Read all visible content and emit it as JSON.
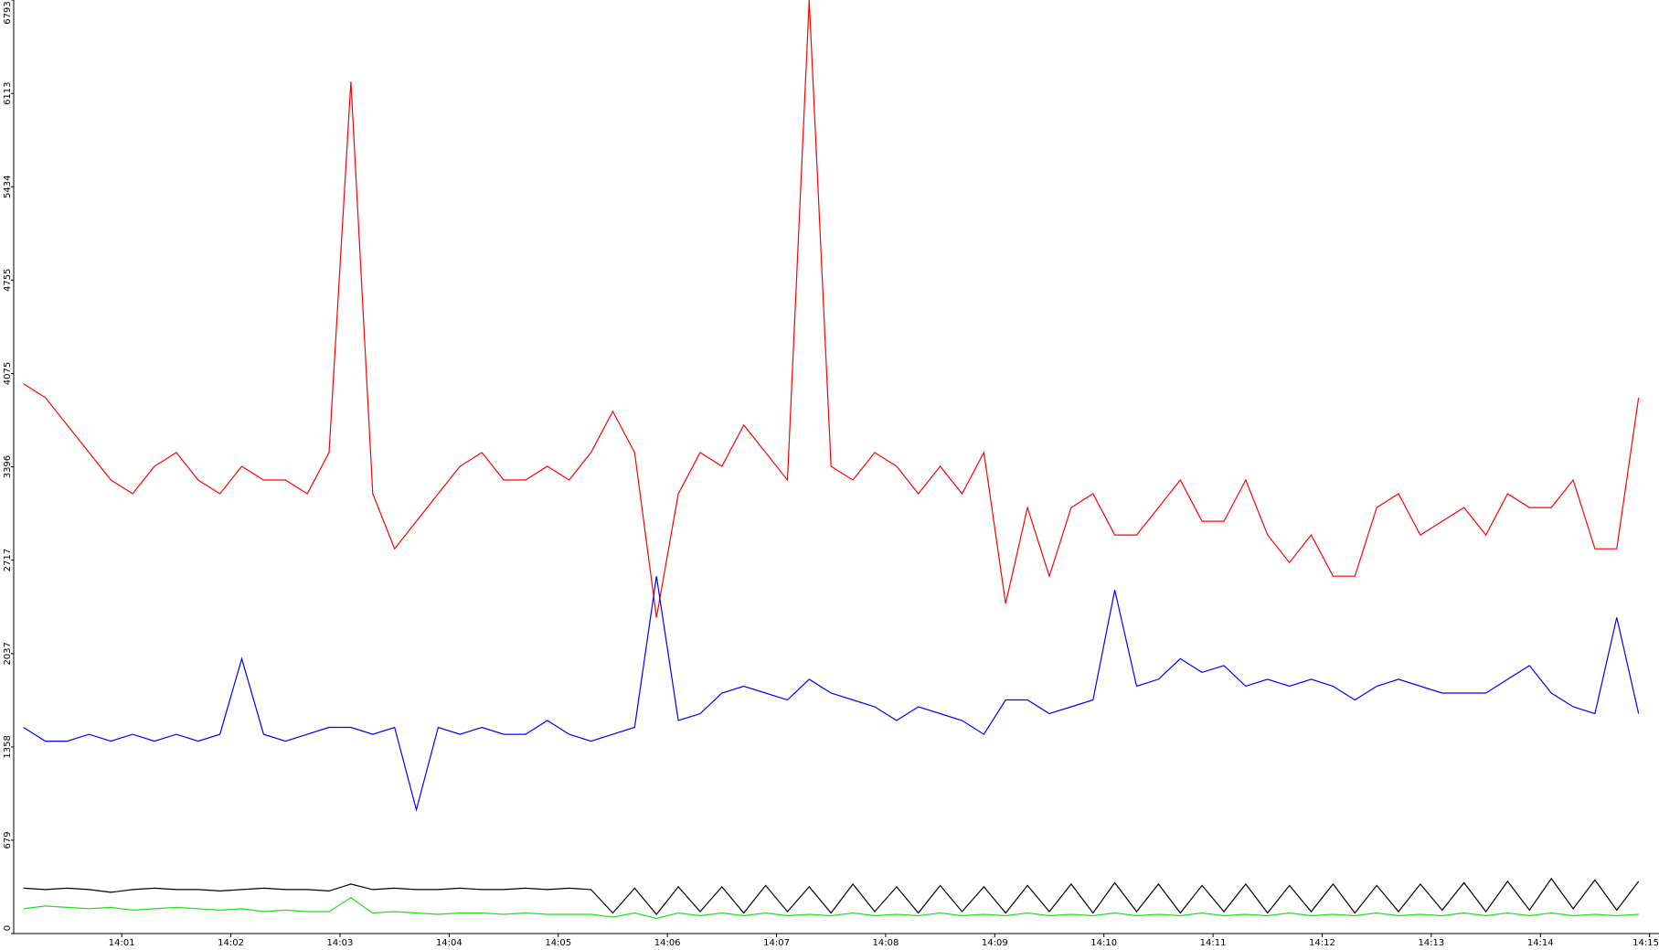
{
  "chart_data": {
    "type": "line",
    "x": [
      0.1,
      0.3,
      0.5,
      0.7,
      0.9,
      1.1,
      1.3,
      1.5,
      1.7,
      1.9,
      2.1,
      2.3,
      2.5,
      2.7,
      2.9,
      3.1,
      3.3,
      3.5,
      3.7,
      3.9,
      4.1,
      4.3,
      4.5,
      4.7,
      4.9,
      5.1,
      5.3,
      5.5,
      5.7,
      5.9,
      6.1,
      6.3,
      6.5,
      6.7,
      6.9,
      7.1,
      7.3,
      7.5,
      7.7,
      7.9,
      8.1,
      8.3,
      8.5,
      8.7,
      8.9,
      9.1,
      9.3,
      9.5,
      9.7,
      9.9,
      10.1,
      10.3,
      10.5,
      10.7,
      10.9,
      11.1,
      11.3,
      11.5,
      11.7,
      11.9,
      12.1,
      12.3,
      12.5,
      12.7,
      12.9,
      13.1,
      13.3,
      13.5,
      13.7,
      13.9,
      14.1,
      14.3,
      14.5,
      14.7,
      14.9
    ],
    "series": [
      {
        "color": "#ff0000",
        "values": [
          4000,
          3900,
          3700,
          3500,
          3300,
          3200,
          3400,
          3500,
          3300,
          3200,
          3400,
          3300,
          3300,
          3200,
          3500,
          6200,
          3200,
          2800,
          3000,
          3200,
          3400,
          3500,
          3300,
          3300,
          3400,
          3300,
          3500,
          3800,
          3500,
          2300,
          3200,
          3500,
          3400,
          3700,
          3500,
          3300,
          6793,
          3400,
          3300,
          3500,
          3400,
          3200,
          3400,
          3200,
          3500,
          2400,
          3100,
          2600,
          3100,
          3200,
          2900,
          2900,
          3100,
          3300,
          3000,
          3000,
          3300,
          2900,
          2700,
          2900,
          2600,
          2600,
          3100,
          3200,
          2900,
          3000,
          3100,
          2900,
          3200,
          3100,
          3100,
          3300,
          2800,
          2800,
          3900
        ]
      },
      {
        "color": "#0000ff",
        "values": [
          1500,
          1400,
          1400,
          1450,
          1400,
          1450,
          1400,
          1450,
          1400,
          1450,
          2000,
          1450,
          1400,
          1450,
          1500,
          1500,
          1450,
          1500,
          900,
          1500,
          1450,
          1500,
          1450,
          1450,
          1550,
          1450,
          1400,
          1450,
          1500,
          2600,
          1550,
          1600,
          1750,
          1800,
          1750,
          1700,
          1850,
          1750,
          1700,
          1650,
          1550,
          1650,
          1600,
          1550,
          1450,
          1700,
          1700,
          1600,
          1650,
          1700,
          2500,
          1800,
          1850,
          2000,
          1900,
          1950,
          1800,
          1850,
          1800,
          1850,
          1800,
          1700,
          1800,
          1850,
          1800,
          1750,
          1750,
          1750,
          1850,
          1950,
          1750,
          1650,
          1600,
          2300,
          1600
        ]
      },
      {
        "color": "#000000",
        "values": [
          330,
          320,
          330,
          320,
          300,
          320,
          330,
          320,
          320,
          310,
          320,
          330,
          320,
          320,
          310,
          360,
          320,
          330,
          320,
          320,
          330,
          320,
          320,
          330,
          320,
          330,
          320,
          150,
          330,
          140,
          340,
          160,
          340,
          150,
          350,
          160,
          340,
          150,
          360,
          160,
          340,
          150,
          350,
          160,
          340,
          150,
          350,
          160,
          360,
          150,
          370,
          160,
          360,
          150,
          350,
          160,
          360,
          150,
          350,
          160,
          360,
          150,
          350,
          160,
          360,
          170,
          370,
          160,
          380,
          170,
          400,
          180,
          390,
          170,
          380
        ]
      },
      {
        "color": "#22dd22",
        "values": [
          180,
          200,
          190,
          180,
          190,
          170,
          180,
          190,
          180,
          170,
          180,
          160,
          170,
          160,
          160,
          260,
          150,
          160,
          150,
          140,
          150,
          150,
          140,
          150,
          140,
          140,
          140,
          120,
          150,
          110,
          150,
          130,
          150,
          130,
          150,
          130,
          140,
          130,
          150,
          130,
          140,
          130,
          150,
          130,
          140,
          130,
          150,
          130,
          140,
          130,
          150,
          130,
          140,
          130,
          150,
          130,
          140,
          130,
          150,
          130,
          140,
          130,
          150,
          130,
          140,
          130,
          150,
          130,
          150,
          130,
          150,
          130,
          140,
          130,
          140
        ]
      }
    ],
    "xlim": [
      0.01,
      15.07
    ],
    "xticks": [
      {
        "value": 1,
        "label": "14:01"
      },
      {
        "value": 2,
        "label": "14:02"
      },
      {
        "value": 3,
        "label": "14:03"
      },
      {
        "value": 4,
        "label": "14:04"
      },
      {
        "value": 5,
        "label": "14:05"
      },
      {
        "value": 6,
        "label": "14:06"
      },
      {
        "value": 7,
        "label": "14:07"
      },
      {
        "value": 8,
        "label": "14:08"
      },
      {
        "value": 9,
        "label": "14:09"
      },
      {
        "value": 10,
        "label": "14:10"
      },
      {
        "value": 11,
        "label": "14:11"
      },
      {
        "value": 12,
        "label": "14:12"
      },
      {
        "value": 13,
        "label": "14:13"
      },
      {
        "value": 14,
        "label": "14:14"
      },
      {
        "value": 15,
        "label": "14:15"
      }
    ],
    "ylim": [
      0,
      6793
    ],
    "yticks": [
      0,
      679,
      1358,
      2037,
      2717,
      3396,
      4075,
      4755,
      5434,
      6113,
      6793
    ],
    "grid": false
  }
}
